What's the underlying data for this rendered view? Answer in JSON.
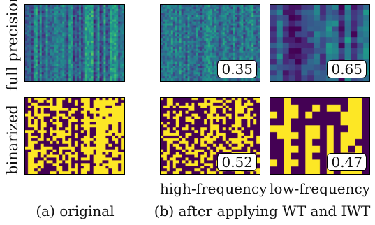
{
  "row_labels": {
    "full_precision": "full precision",
    "binarized": "binarized"
  },
  "col_labels": {
    "high_frequency": "high-frequency",
    "low_frequency": "low-frequency"
  },
  "captions": {
    "a": "(a) original",
    "b": "(b) after applying WT and IWT"
  },
  "panels": {
    "fp_original": {
      "type": "continuous"
    },
    "fp_high": {
      "type": "continuous",
      "value": "0.35"
    },
    "fp_low": {
      "type": "blocky-continuous",
      "value": "0.65"
    },
    "bin_original": {
      "type": "binary"
    },
    "bin_high": {
      "type": "binary",
      "value": "0.52"
    },
    "bin_low": {
      "type": "blocky-binary",
      "value": "0.47"
    }
  },
  "colors": {
    "binary_on": "#fde725",
    "binary_off": "#440154",
    "colormap": "viridis"
  }
}
